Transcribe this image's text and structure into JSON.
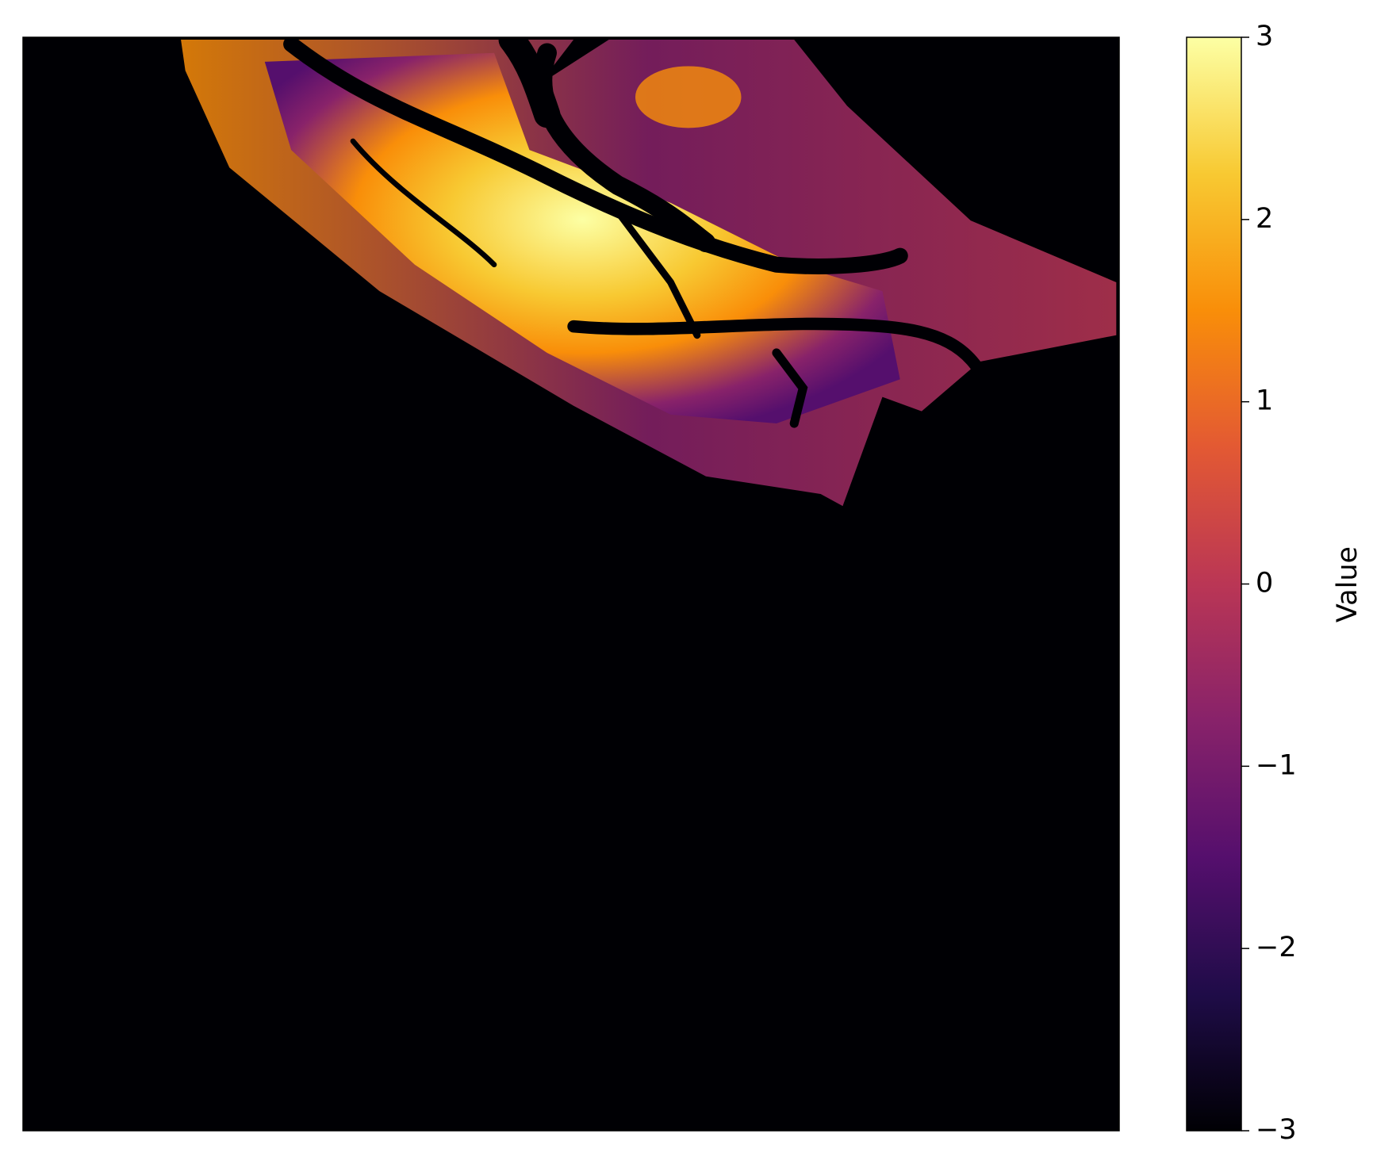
{
  "chart_data": {
    "type": "heatmap",
    "colorbar": {
      "label": "Value",
      "lim": [
        -3,
        3
      ],
      "ticks": [
        {
          "value": -3,
          "label": "−3"
        },
        {
          "value": -2,
          "label": "−2"
        },
        {
          "value": -1,
          "label": "−1"
        },
        0,
        1,
        2,
        3
      ],
      "colors": [
        "#000004",
        "#1f0c48",
        "#550f6d",
        "#88226a",
        "#ba3655",
        "#e35933",
        "#f98e09",
        "#f8c932",
        "#fcffa4"
      ]
    },
    "background": "#000004"
  }
}
